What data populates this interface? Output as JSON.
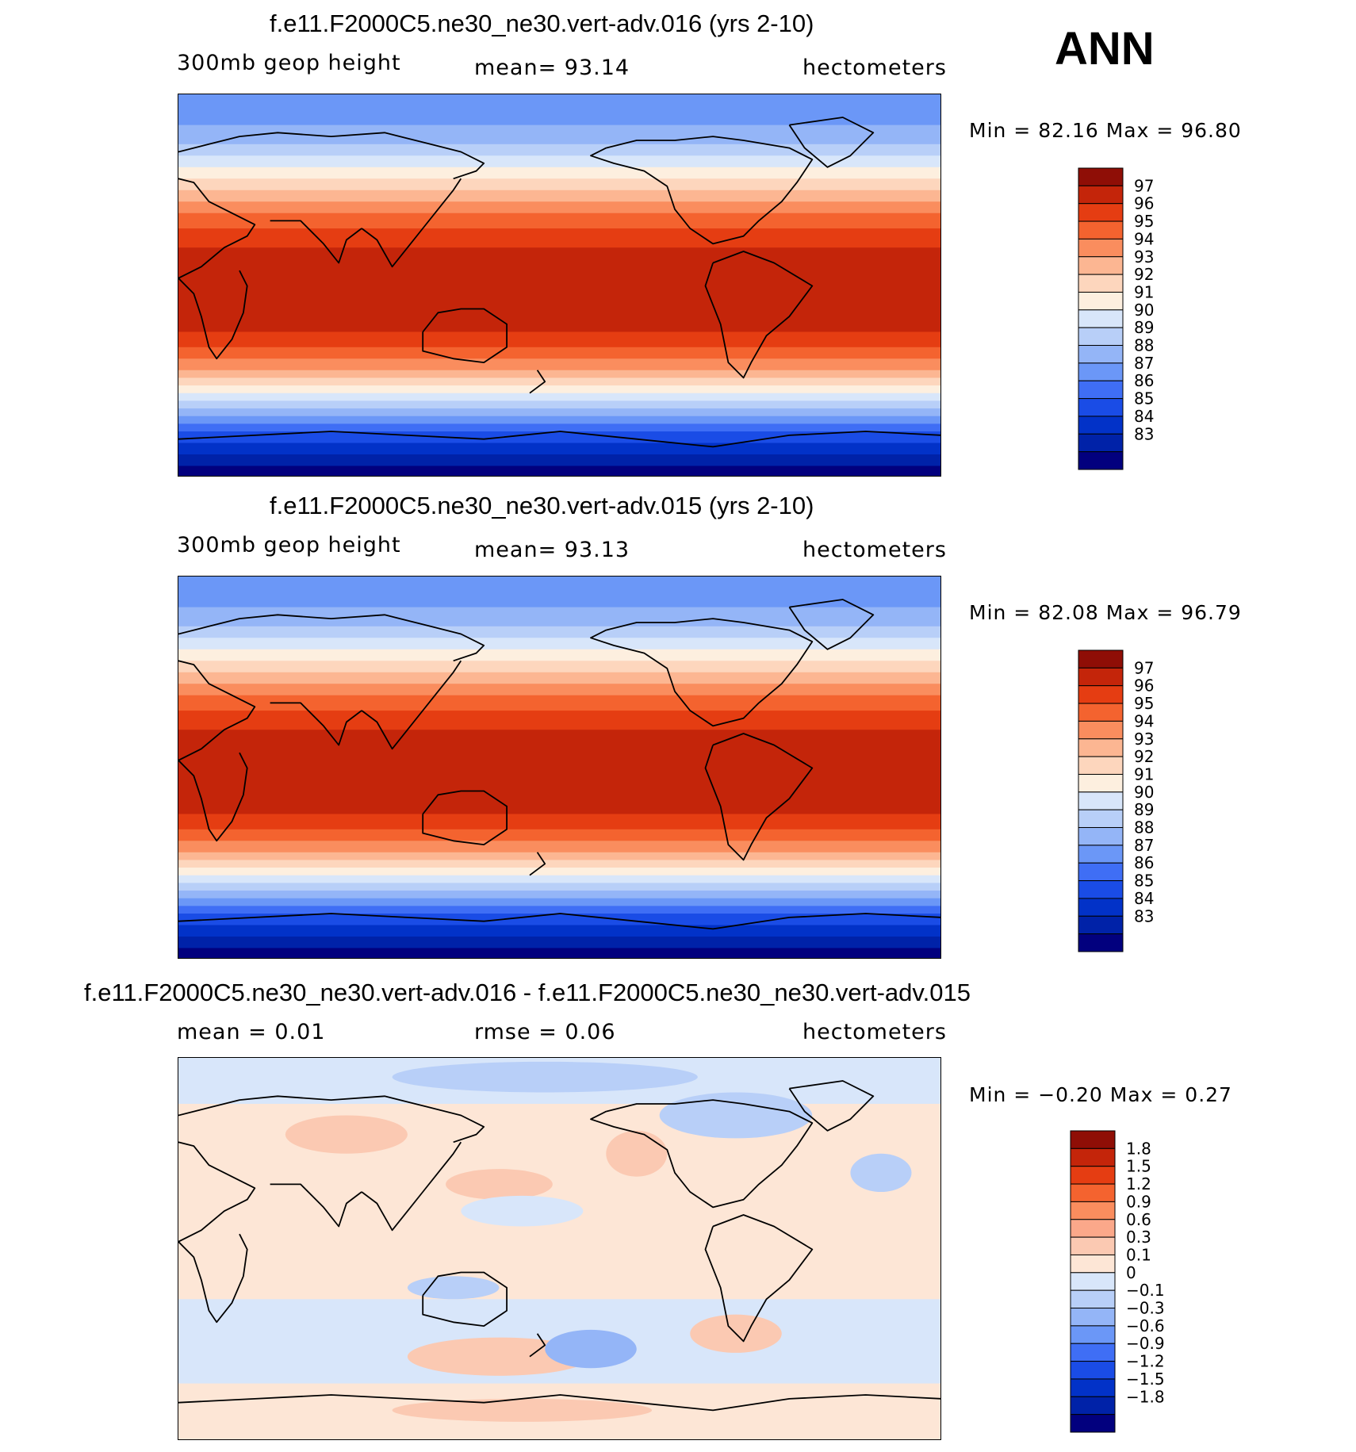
{
  "season": "ANN",
  "colors": {
    "height": [
      "#02007e",
      "#0022a8",
      "#0232c8",
      "#1a4ce6",
      "#3f6ef5",
      "#6b97f7",
      "#94b5f7",
      "#b8cff8",
      "#d8e6fa",
      "#fdefdf",
      "#fdd6bd",
      "#fcb692",
      "#fa8d5e",
      "#f4632f",
      "#e53d12",
      "#c4250a",
      "#8f0e06"
    ],
    "diff": [
      "#02007e",
      "#0022a8",
      "#0232c8",
      "#1a4ce6",
      "#3f6ef5",
      "#6b97f7",
      "#94b5f7",
      "#b8cff8",
      "#d8e6fa",
      "#fde6d6",
      "#fbc9b2",
      "#fba88a",
      "#fa8d5e",
      "#f4632f",
      "#e53d12",
      "#c4250a",
      "#8f0e06"
    ]
  },
  "panels": [
    {
      "title": "f.e11.F2000C5.ne30_ne30.vert-adv.016 (yrs 2-10)",
      "left": "300mb  geop  height",
      "center": "mean=   93.14",
      "right": "hectometers",
      "minmax": "Min  =    82.16  Max  =    96.80",
      "colorbar_labels": [
        "97",
        "96",
        "95",
        "94",
        "93",
        "92",
        "91",
        "90",
        "89",
        "88",
        "87",
        "86",
        "85",
        "84",
        "83"
      ]
    },
    {
      "title": "f.e11.F2000C5.ne30_ne30.vert-adv.015 (yrs 2-10)",
      "left": "300mb  geop  height",
      "center": "mean=   93.13",
      "right": "hectometers",
      "minmax": "Min  =    82.08  Max  =    96.79",
      "colorbar_labels": [
        "97",
        "96",
        "95",
        "94",
        "93",
        "92",
        "91",
        "90",
        "89",
        "88",
        "87",
        "86",
        "85",
        "84",
        "83"
      ]
    },
    {
      "title": "f.e11.F2000C5.ne30_ne30.vert-adv.016 - f.e11.F2000C5.ne30_ne30.vert-adv.015",
      "left": "mean  =      0.01",
      "center": "rmse  =     0.06",
      "right": "hectometers",
      "minmax": "Min  =   −0.20  Max  =      0.27",
      "colorbar_labels": [
        "1.8",
        "1.5",
        "1.2",
        "0.9",
        "0.6",
        "0.3",
        "0.1",
        "0",
        "−0.1",
        "−0.3",
        "−0.6",
        "−0.9",
        "−1.2",
        "−1.5",
        "−1.8"
      ]
    }
  ]
}
